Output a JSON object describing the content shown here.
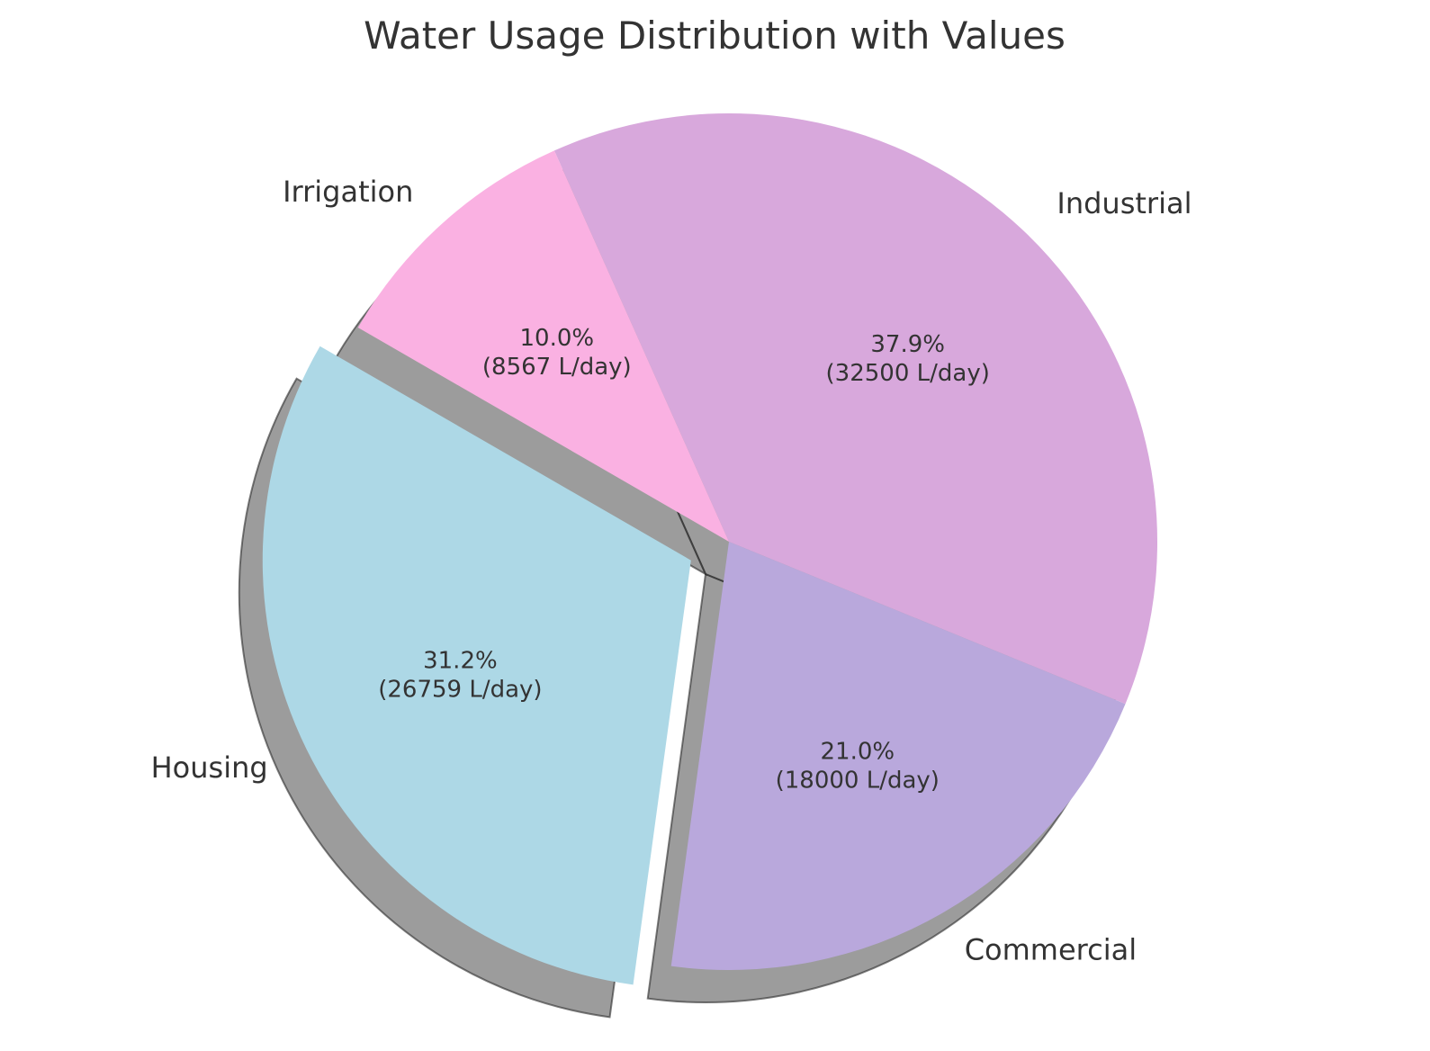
{
  "chart_data": {
    "type": "pie",
    "title": "Water Usage Distribution with Values",
    "unit": "L/day",
    "start_angle_deg": 150,
    "direction": "counterclockwise",
    "shadow": true,
    "slices": [
      {
        "label": "Housing",
        "value": 26759,
        "percent_label": "31.2%",
        "value_label": "(26759 L/day)",
        "color": "#add8e6",
        "exploded": true
      },
      {
        "label": "Commercial",
        "value": 18000,
        "percent_label": "21.0%",
        "value_label": "(18000 L/day)",
        "color": "#b9a8dc",
        "exploded": false
      },
      {
        "label": "Industrial",
        "value": 32500,
        "percent_label": "37.9%",
        "value_label": "(32500 L/day)",
        "color": "#d8a8dc",
        "exploded": false
      },
      {
        "label": "Irrigation",
        "value": 8567,
        "percent_label": "10.0%",
        "value_label": "(8567 L/day)",
        "color": "#fab1e2",
        "exploded": false
      }
    ]
  }
}
